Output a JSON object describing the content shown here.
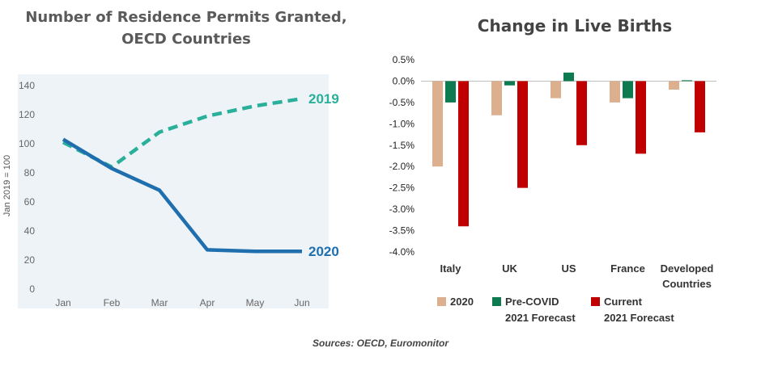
{
  "charts": {
    "left": {
      "title_line1": "Number of Residence Permits Granted,",
      "title_line2": "OECD Countries"
    },
    "right": {
      "title": "Change in Live Births"
    }
  },
  "sources": "Sources: OECD, Euromonitor",
  "legend": {
    "item_2020": "2020",
    "item_precovid_1": "Pre-COVID",
    "item_precovid_2": "2021 Forecast",
    "item_current_1": "Current",
    "item_current_2": "2021 Forecast"
  },
  "colors": {
    "line_2019": "#2ab09a",
    "line_2020": "#1f6fae",
    "bar_2020": "#dcb08f",
    "bar_precovid": "#0e7a4f",
    "bar_current": "#c00000",
    "panel_bg": "#eef3f7"
  },
  "chart_data": [
    {
      "type": "line",
      "title": "Number of Residence Permits Granted, OECD Countries",
      "xlabel": "",
      "ylabel": "Jan 2019 = 100",
      "x": [
        "Jan",
        "Feb",
        "Mar",
        "Apr",
        "May",
        "Jun"
      ],
      "ylim": [
        0,
        140
      ],
      "yticks": [
        "0",
        "20",
        "40",
        "60",
        "80",
        "100",
        "120",
        "140"
      ],
      "series": [
        {
          "name": "2019",
          "style": "dashed",
          "values": [
            101,
            84,
            108,
            119,
            126,
            131
          ]
        },
        {
          "name": "2020",
          "style": "solid",
          "values": [
            103,
            83,
            68,
            27,
            26,
            26
          ]
        }
      ]
    },
    {
      "type": "bar",
      "title": "Change in Live Births",
      "xlabel": "",
      "ylabel": "",
      "categories": [
        "Italy",
        "UK",
        "US",
        "France",
        "Developed Countries"
      ],
      "category_labels": [
        [
          "Italy"
        ],
        [
          "UK"
        ],
        [
          "US"
        ],
        [
          "France"
        ],
        [
          "Developed",
          "Countries"
        ]
      ],
      "ylim": [
        -4.0,
        0.5
      ],
      "yticks": [
        "0.5%",
        "0.0%",
        "-0.5%",
        "-1.0%",
        "-1.5%",
        "-2.0%",
        "-2.5%",
        "-3.0%",
        "-3.5%",
        "-4.0%"
      ],
      "series": [
        {
          "name": "2020",
          "values": [
            -2.0,
            -0.8,
            -0.4,
            -0.5,
            -0.2
          ]
        },
        {
          "name": "Pre-COVID 2021 Forecast",
          "values": [
            -0.5,
            -0.1,
            0.2,
            -0.4,
            0.02
          ]
        },
        {
          "name": "Current 2021 Forecast",
          "values": [
            -3.4,
            -2.5,
            -1.5,
            -1.7,
            -1.2
          ]
        }
      ]
    }
  ]
}
